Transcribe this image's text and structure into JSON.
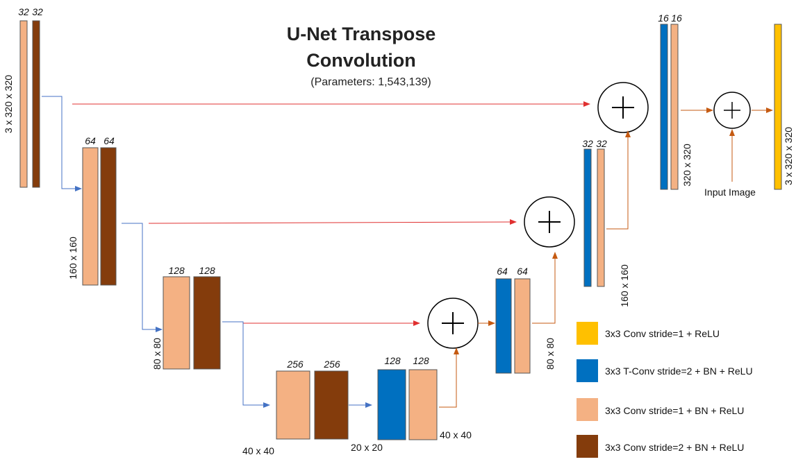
{
  "title_line1": "U-Net Transpose",
  "title_line2": "Convolution",
  "subtitle": "(Parameters: 1,543,139)",
  "colors": {
    "conv_relu": "#FFC000",
    "tconv_bn_relu": "#0070C0",
    "conv_bn_relu": "#F4B183",
    "conv_s2_bn_relu": "#843C0C",
    "skip_arrow": "#E03030",
    "down_arrow": "#4472C4",
    "up_arrow": "#C55A11"
  },
  "legend": [
    {
      "label": "3x3 Conv stride=1 + ReLU",
      "color_key": "conv_relu"
    },
    {
      "label": "3x3 T-Conv stride=2 + BN + ReLU",
      "color_key": "tconv_bn_relu"
    },
    {
      "label": "3x3 Conv stride=1 + BN + ReLU",
      "color_key": "conv_bn_relu"
    },
    {
      "label": "3x3 Conv stride=2 + BN + ReLU",
      "color_key": "conv_s2_bn_relu"
    }
  ],
  "channels": {
    "enc1": [
      "32",
      "32"
    ],
    "enc2": [
      "64",
      "64"
    ],
    "enc3": [
      "128",
      "128"
    ],
    "bottleneck": [
      "256",
      "256"
    ],
    "dec4": [
      "128",
      "128"
    ],
    "dec3": [
      "64",
      "64"
    ],
    "dec2": [
      "32",
      "32"
    ],
    "dec1": [
      "16",
      "16"
    ]
  },
  "dims": {
    "input": "3 x 320 x 320",
    "enc2": "160 x 160",
    "enc3": "80 x 80",
    "bottleneck_in": "40 x 40",
    "bottleneck_out": "20 x 20",
    "dec4": "40 x 40",
    "dec3": "80 x 80",
    "dec2": "160 x 160",
    "dec1": "320 x 320",
    "output": "3 x 320 x 320"
  },
  "input_image_label": "Input Image"
}
